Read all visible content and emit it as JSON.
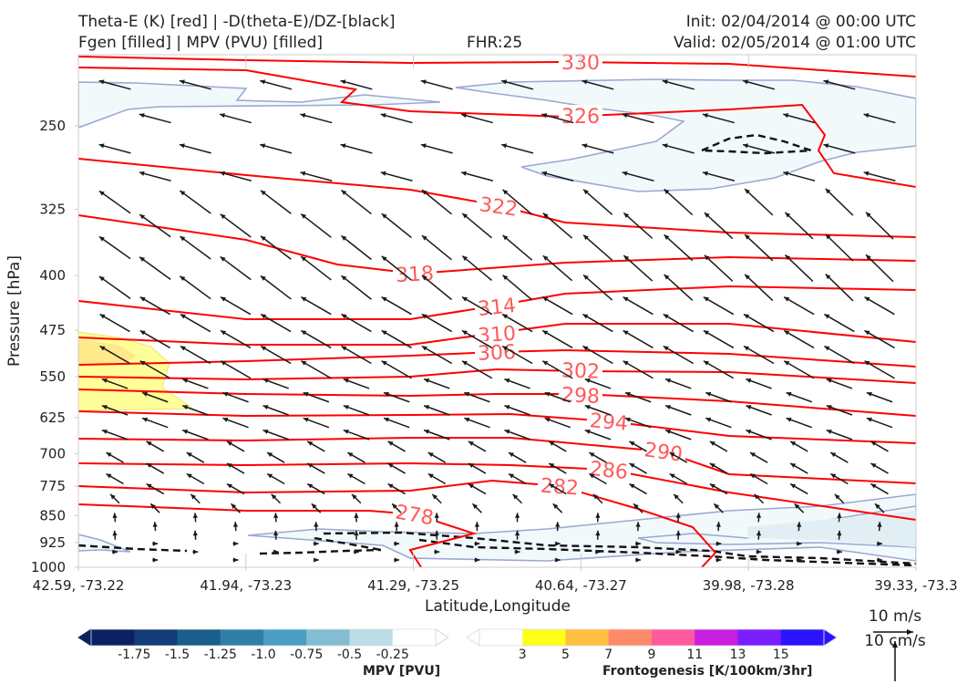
{
  "header": {
    "title_line1": "Theta-E (K) [red] | -D(theta-E)/DZ-[black]",
    "title_line2": "Fgen [filled] | MPV (PVU) [filled]",
    "fhr": "FHR:25",
    "init": "Init: 02/04/2014 @ 00:00 UTC",
    "valid": "Valid: 02/05/2014 @ 01:00 UTC"
  },
  "chart_data": {
    "type": "cross-section",
    "xlabel": "Latitude,Longitude",
    "ylabel": "Pressure [hPa]",
    "y_scale": "log",
    "ylim": [
      1000,
      200
    ],
    "y_ticks": [
      250,
      325,
      400,
      475,
      550,
      625,
      700,
      775,
      850,
      925,
      1000
    ],
    "x_ticks": [
      "42.59, -73.22",
      "41.94, -73.23",
      "41.29, -73.25",
      "40.64, -73.27",
      "39.98, -73.28",
      "39.33, -73.3"
    ],
    "theta_e": {
      "color": "#ff0000",
      "levels": [
        330,
        326,
        322,
        318,
        314,
        310,
        306,
        302,
        298,
        294,
        290,
        286,
        282,
        278
      ]
    },
    "wind_reference": {
      "upper": "10 m/s",
      "lower": "10 cm/s"
    },
    "colorbars": [
      {
        "title": "MPV [PVU]",
        "ticks": [
          "-1.75",
          "-1.5",
          "-1.25",
          "-1.0",
          "-0.75",
          "-0.5",
          "-0.25"
        ],
        "colors": [
          "#0c2161",
          "#123d7a",
          "#1a5e8e",
          "#2f7fa9",
          "#4a9ec4",
          "#83bdd3",
          "#bcdce6",
          "#ffffff"
        ]
      },
      {
        "title": "Frontogenesis [K/100km/3hr]",
        "ticks": [
          "3",
          "5",
          "7",
          "9",
          "11",
          "13",
          "15"
        ],
        "colors": [
          "#ffffff",
          "#ffff1a",
          "#ffc040",
          "#ff8a6a",
          "#ff5aa0",
          "#c81ee0",
          "#7a1eff",
          "#2a14ff"
        ]
      }
    ]
  }
}
